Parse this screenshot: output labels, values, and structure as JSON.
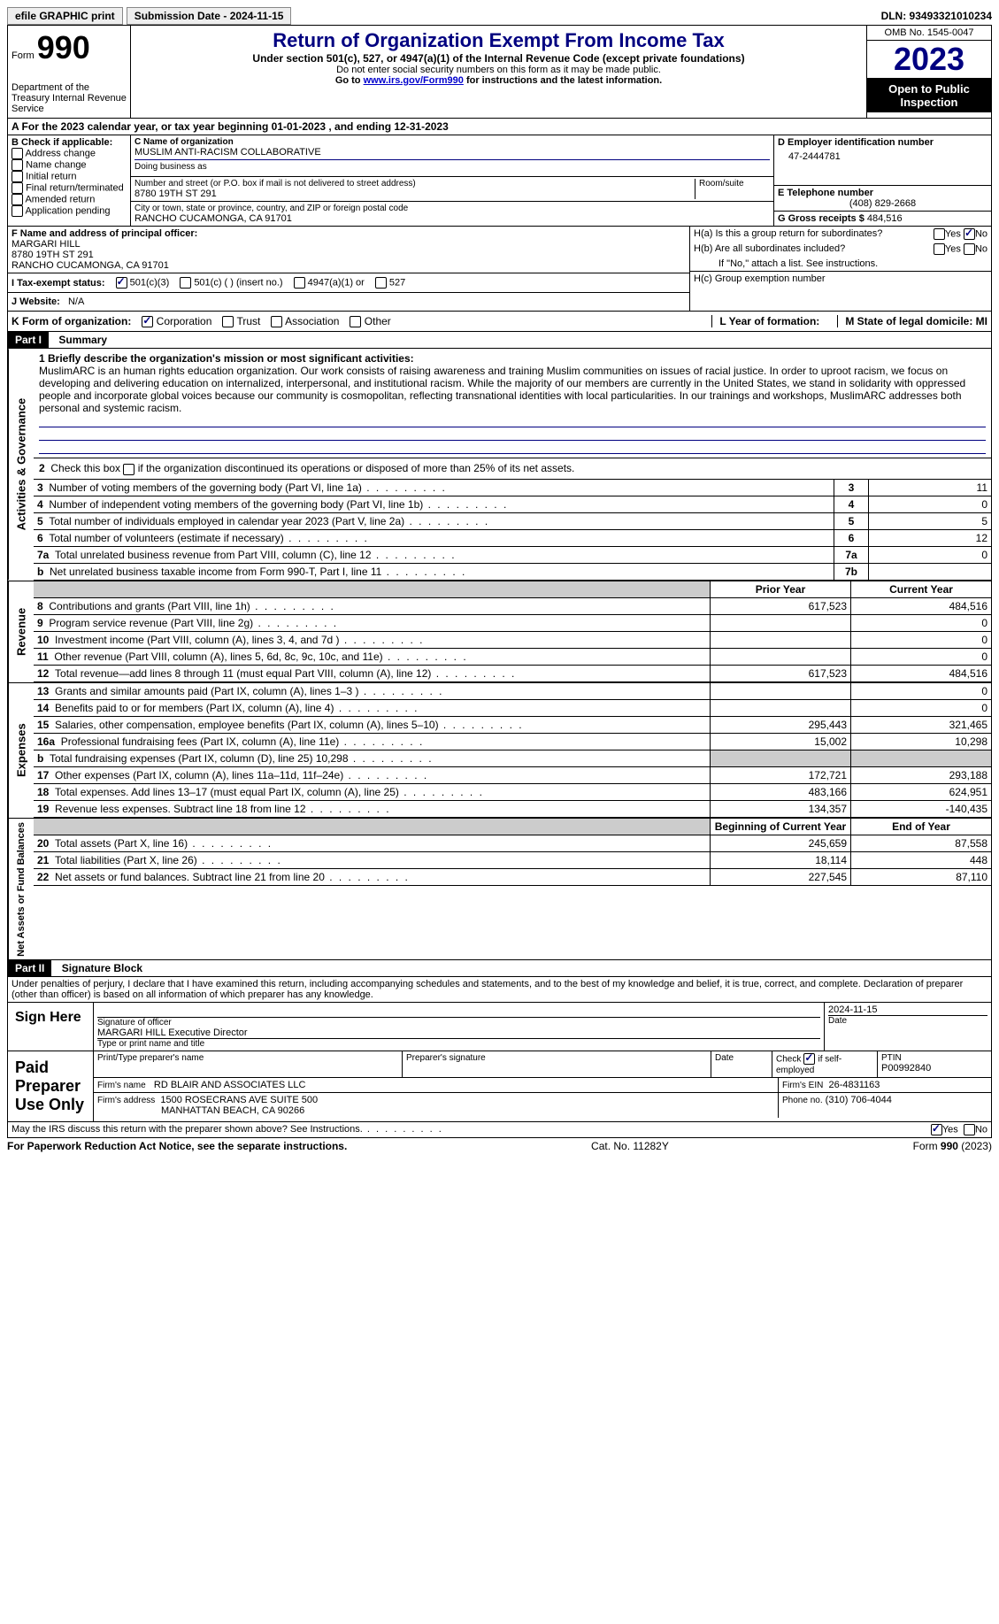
{
  "topbar": {
    "efile": "efile GRAPHIC print",
    "submission": "Submission Date - 2024-11-15",
    "dln": "DLN: 93493321010234"
  },
  "header": {
    "form_label": "Form",
    "form_number": "990",
    "dept": "Department of the Treasury Internal Revenue Service",
    "title": "Return of Organization Exempt From Income Tax",
    "subtitle": "Under section 501(c), 527, or 4947(a)(1) of the Internal Revenue Code (except private foundations)",
    "sub1": "Do not enter social security numbers on this form as it may be made public.",
    "sub2_pre": "Go to ",
    "sub2_link": "www.irs.gov/Form990",
    "sub2_post": " for instructions and the latest information.",
    "omb": "OMB No. 1545-0047",
    "year": "2023",
    "open": "Open to Public Inspection"
  },
  "line_a": "A  For the 2023 calendar year, or tax year beginning 01-01-2023    , and ending 12-31-2023",
  "box_b": {
    "label": "B Check if applicable:",
    "items": [
      "Address change",
      "Name change",
      "Initial return",
      "Final return/terminated",
      "Amended return",
      "Application pending"
    ]
  },
  "box_c": {
    "name_label": "C Name of organization",
    "name": "MUSLIM ANTI-RACISM COLLABORATIVE",
    "dba_label": "Doing business as",
    "street_label": "Number and street (or P.O. box if mail is not delivered to street address)",
    "street": "8780 19TH ST 291",
    "room_label": "Room/suite",
    "city_label": "City or town, state or province, country, and ZIP or foreign postal code",
    "city": "RANCHO CUCAMONGA, CA  91701"
  },
  "box_d": {
    "label": "D Employer identification number",
    "value": "47-2444781"
  },
  "box_e": {
    "label": "E Telephone number",
    "value": "(408) 829-2668"
  },
  "box_g": {
    "label": "G Gross receipts $",
    "value": "484,516"
  },
  "box_f": {
    "label": "F Name and address of principal officer:",
    "name": "MARGARI HILL",
    "addr1": "8780 19TH ST 291",
    "addr2": "RANCHO CUCAMONGA, CA  91701"
  },
  "box_h": {
    "ha": "H(a)  Is this a group return for subordinates?",
    "hb": "H(b)  Are all subordinates included?",
    "hb_note": "If \"No,\" attach a list. See instructions.",
    "hc": "H(c)  Group exemption number",
    "yes": "Yes",
    "no": "No"
  },
  "status": {
    "label": "I   Tax-exempt status:",
    "o1": "501(c)(3)",
    "o2": "501(c) (  ) (insert no.)",
    "o3": "4947(a)(1) or",
    "o4": "527"
  },
  "website": {
    "label": "J   Website:",
    "value": "N/A"
  },
  "line_k": {
    "label": "K Form of organization:",
    "o1": "Corporation",
    "o2": "Trust",
    "o3": "Association",
    "o4": "Other",
    "l": "L Year of formation:",
    "m": "M State of legal domicile: MI"
  },
  "part1": {
    "header": "Part I",
    "title": "Summary",
    "mission_label": "1   Briefly describe the organization's mission or most significant activities:",
    "mission": "MuslimARC is an human rights education organization. Our work consists of raising awareness and training Muslim communities on issues of racial justice. In order to uproot racism, we focus on developing and delivering education on internalized, interpersonal, and institutional racism. While the majority of our members are currently in the United States, we stand in solidarity with oppressed people and incorporate global voices because our community is cosmopolitan, reflecting transnational identities with local particularities. In our trainings and workshops, MuslimARC addresses both personal and systemic racism."
  },
  "gov": {
    "line2": "2   Check this box        if the organization discontinued its operations or disposed of more than 25% of its net assets.",
    "rows": [
      {
        "n": "3",
        "d": "Number of voting members of the governing body (Part VI, line 1a)",
        "c": "3",
        "v": "11"
      },
      {
        "n": "4",
        "d": "Number of independent voting members of the governing body (Part VI, line 1b)",
        "c": "4",
        "v": "0"
      },
      {
        "n": "5",
        "d": "Total number of individuals employed in calendar year 2023 (Part V, line 2a)",
        "c": "5",
        "v": "5"
      },
      {
        "n": "6",
        "d": "Total number of volunteers (estimate if necessary)",
        "c": "6",
        "v": "12"
      },
      {
        "n": "7a",
        "d": "Total unrelated business revenue from Part VIII, column (C), line 12",
        "c": "7a",
        "v": "0"
      },
      {
        "n": "b",
        "d": "Net unrelated business taxable income from Form 990-T, Part I, line 11",
        "c": "7b",
        "v": ""
      }
    ]
  },
  "rev": {
    "h1": "Prior Year",
    "h2": "Current Year",
    "rows": [
      {
        "n": "8",
        "d": "Contributions and grants (Part VIII, line 1h)",
        "p": "617,523",
        "c": "484,516"
      },
      {
        "n": "9",
        "d": "Program service revenue (Part VIII, line 2g)",
        "p": "",
        "c": "0"
      },
      {
        "n": "10",
        "d": "Investment income (Part VIII, column (A), lines 3, 4, and 7d )",
        "p": "",
        "c": "0"
      },
      {
        "n": "11",
        "d": "Other revenue (Part VIII, column (A), lines 5, 6d, 8c, 9c, 10c, and 11e)",
        "p": "",
        "c": "0"
      },
      {
        "n": "12",
        "d": "Total revenue—add lines 8 through 11 (must equal Part VIII, column (A), line 12)",
        "p": "617,523",
        "c": "484,516"
      }
    ]
  },
  "exp": {
    "rows": [
      {
        "n": "13",
        "d": "Grants and similar amounts paid (Part IX, column (A), lines 1–3 )",
        "p": "",
        "c": "0"
      },
      {
        "n": "14",
        "d": "Benefits paid to or for members (Part IX, column (A), line 4)",
        "p": "",
        "c": "0"
      },
      {
        "n": "15",
        "d": "Salaries, other compensation, employee benefits (Part IX, column (A), lines 5–10)",
        "p": "295,443",
        "c": "321,465"
      },
      {
        "n": "16a",
        "d": "Professional fundraising fees (Part IX, column (A), line 11e)",
        "p": "15,002",
        "c": "10,298"
      },
      {
        "n": "b",
        "d": "Total fundraising expenses (Part IX, column (D), line 25) 10,298",
        "p": "SHADE",
        "c": "SHADE"
      },
      {
        "n": "17",
        "d": "Other expenses (Part IX, column (A), lines 11a–11d, 11f–24e)",
        "p": "172,721",
        "c": "293,188"
      },
      {
        "n": "18",
        "d": "Total expenses. Add lines 13–17 (must equal Part IX, column (A), line 25)",
        "p": "483,166",
        "c": "624,951"
      },
      {
        "n": "19",
        "d": "Revenue less expenses. Subtract line 18 from line 12",
        "p": "134,357",
        "c": "-140,435"
      }
    ]
  },
  "net": {
    "h1": "Beginning of Current Year",
    "h2": "End of Year",
    "rows": [
      {
        "n": "20",
        "d": "Total assets (Part X, line 16)",
        "p": "245,659",
        "c": "87,558"
      },
      {
        "n": "21",
        "d": "Total liabilities (Part X, line 26)",
        "p": "18,114",
        "c": "448"
      },
      {
        "n": "22",
        "d": "Net assets or fund balances. Subtract line 21 from line 20",
        "p": "227,545",
        "c": "87,110"
      }
    ]
  },
  "part2": {
    "header": "Part II",
    "title": "Signature Block",
    "perjury": "Under penalties of perjury, I declare that I have examined this return, including accompanying schedules and statements, and to the best of my knowledge and belief, it is true, correct, and complete. Declaration of preparer (other than officer) is based on all information of which preparer has any knowledge."
  },
  "sign": {
    "here": "Sign Here",
    "date": "2024-11-15",
    "sig_label": "Signature of officer",
    "officer": "MARGARI HILL  Executive Director",
    "type_label": "Type or print name and title",
    "date_label": "Date"
  },
  "preparer": {
    "label": "Paid Preparer Use Only",
    "h1": "Print/Type preparer's name",
    "h2": "Preparer's signature",
    "h3": "Date",
    "h4_pre": "Check",
    "h4_post": "if self-employed",
    "ptin_label": "PTIN",
    "ptin": "P00992840",
    "firm_name_label": "Firm's name",
    "firm_name": "RD BLAIR AND ASSOCIATES LLC",
    "firm_ein_label": "Firm's EIN",
    "firm_ein": "26-4831163",
    "firm_addr_label": "Firm's address",
    "firm_addr1": "1500 ROSECRANS AVE SUITE 500",
    "firm_addr2": "MANHATTAN BEACH, CA  90266",
    "phone_label": "Phone no.",
    "phone": "(310) 706-4044"
  },
  "discuss": {
    "q": "May the IRS discuss this return with the preparer shown above? See Instructions.",
    "yes": "Yes",
    "no": "No"
  },
  "footer": {
    "left": "For Paperwork Reduction Act Notice, see the separate instructions.",
    "mid": "Cat. No. 11282Y",
    "right": "Form 990 (2023)"
  },
  "labels": {
    "vert_gov": "Activities & Governance",
    "vert_rev": "Revenue",
    "vert_exp": "Expenses",
    "vert_net": "Net Assets or Fund Balances"
  }
}
